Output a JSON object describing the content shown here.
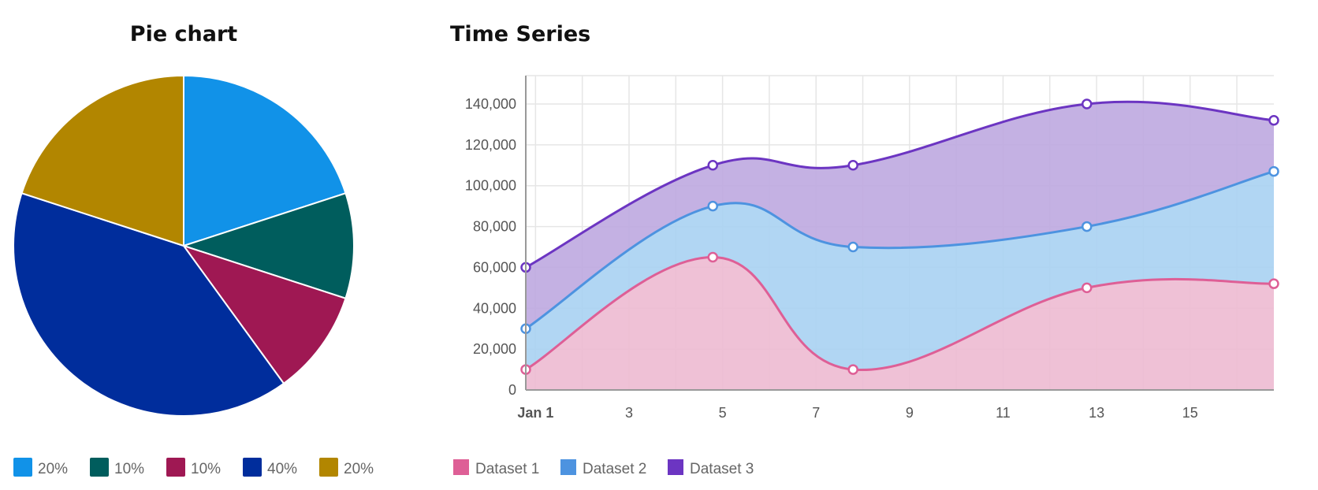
{
  "chart_data": [
    {
      "type": "pie",
      "title": "Pie chart",
      "slices": [
        {
          "label": "20%",
          "value": 20,
          "color": "#1192e8"
        },
        {
          "label": "10%",
          "value": 10,
          "color": "#005d5d"
        },
        {
          "label": "10%",
          "value": 10,
          "color": "#9f1853"
        },
        {
          "label": "40%",
          "value": 40,
          "color": "#002d9c"
        },
        {
          "label": "20%",
          "value": 20,
          "color": "#b28600"
        }
      ],
      "start_angle": "top",
      "direction": "clockwise",
      "legend_placement": "bottom"
    },
    {
      "type": "area",
      "stacked": true,
      "curve": "smooth",
      "title": "Time Series",
      "x": [
        "2018-12-31T19:00",
        "2019-01-04T19:00",
        "2019-01-07T19:00",
        "2019-01-12T19:00",
        "2019-01-16T19:00"
      ],
      "xlim": [
        "2018-12-31T19:00",
        "2019-01-16T19:00"
      ],
      "x_ticks": [
        "Jan 1",
        "3",
        "5",
        "7",
        "9",
        "11",
        "13",
        "15"
      ],
      "ylim": [
        0,
        150000
      ],
      "y_ticks": [
        "0",
        "20,000",
        "40,000",
        "60,000",
        "80,000",
        "100,000",
        "120,000",
        "140,000"
      ],
      "y_tick_values": [
        0,
        20000,
        40000,
        60000,
        80000,
        100000,
        120000,
        140000
      ],
      "grid": true,
      "legend_placement": "bottom-left",
      "series": [
        {
          "name": "Dataset 1",
          "color": "#de5f96",
          "fill": "#edbad2",
          "values": [
            10000,
            65000,
            10000,
            50000,
            52000
          ]
        },
        {
          "name": "Dataset 2",
          "color": "#4d93e0",
          "fill": "#a9d1f2",
          "values": [
            20000,
            25000,
            60000,
            30000,
            55000
          ]
        },
        {
          "name": "Dataset 3",
          "color": "#6c35c2",
          "fill": "#bea8e0",
          "values": [
            30000,
            20000,
            40000,
            60000,
            25000
          ]
        }
      ]
    }
  ]
}
